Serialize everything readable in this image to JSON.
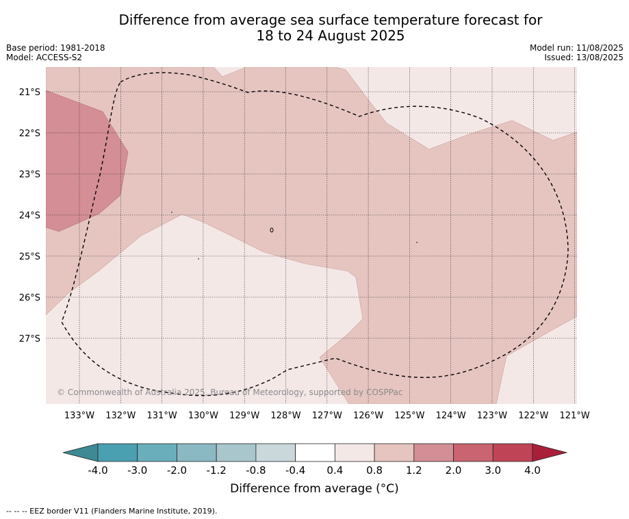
{
  "title_line1": "Difference from average sea surface temperature forecast for",
  "title_line2": "18 to 24 August 2025",
  "meta": {
    "base_period": "Base period: 1981-2018",
    "model": "Model: ACCESS-S2",
    "model_run": "Model run: 11/08/2025",
    "issued": "Issued: 13/08/2025"
  },
  "map": {
    "lon_ticks": [
      "133°W",
      "132°W",
      "131°W",
      "130°W",
      "129°W",
      "128°W",
      "127°W",
      "126°W",
      "125°W",
      "124°W",
      "123°W",
      "122°W",
      "121°W"
    ],
    "lat_ticks": [
      "21°S",
      "22°S",
      "23°S",
      "24°S",
      "25°S",
      "26°S",
      "27°S"
    ],
    "credit": "© Commonwealth of Australia 2025, Bureau of Meteorology, supported by COSPPac",
    "colors": {
      "anom_0_4_to_0_8": "#f4e8e7",
      "anom_0_8_to_1_2": "#e6c5c1",
      "anom_1_2_to_2_0": "#d48e95"
    }
  },
  "colorbar": {
    "ticks": [
      "-4.0",
      "-3.0",
      "-2.0",
      "-1.2",
      "-0.8",
      "-0.4",
      "0.4",
      "0.8",
      "1.2",
      "2.0",
      "3.0",
      "4.0"
    ],
    "colors": [
      "#4a9fb0",
      "#6aaebb",
      "#8ab8c3",
      "#a8c6cb",
      "#cad8dc",
      "#ffffff",
      "#f4e8e7",
      "#e6c5c1",
      "#d48e95",
      "#c96470",
      "#bf4556"
    ],
    "under_color": "#3d8a95",
    "over_color": "#a91f3a",
    "label": "Difference from average (°C)"
  },
  "footnote": "--  --  -- EEZ border V11 (Flanders Marine Institute, 2019)."
}
